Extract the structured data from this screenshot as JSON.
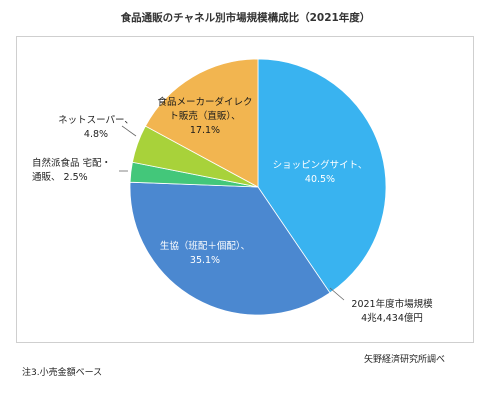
{
  "title": "食品通販のチャネル別市場規模構成比（2021年度）",
  "chart_data": {
    "type": "pie",
    "start_angle_deg": 0,
    "direction": "clockwise",
    "slices": [
      {
        "label": "ショッピングサイト、",
        "value": 40.5,
        "value_label": "40.5%",
        "color": "#39b3f0"
      },
      {
        "label": "生協（班配＋個配）、",
        "value": 35.1,
        "value_label": "35.1%",
        "color": "#4b88d0"
      },
      {
        "label": "自然派食品 宅配・",
        "label2": "通販、",
        "value": 2.5,
        "value_label": "2.5%",
        "color": "#43c77a"
      },
      {
        "label": "ネットスーパー、",
        "value": 4.8,
        "value_label": "4.8%",
        "color": "#a8d23a"
      },
      {
        "label": "食品メーカーダイレク",
        "label2": "ト販売（直販）、",
        "value": 17.1,
        "value_label": "17.1%",
        "color": "#f2b550"
      }
    ]
  },
  "market_size": {
    "line1": "2021年度市場規模",
    "line2": "4兆4,434億円"
  },
  "source": "矢野経済研究所調べ",
  "footnote": "注3.小売金額ベース"
}
